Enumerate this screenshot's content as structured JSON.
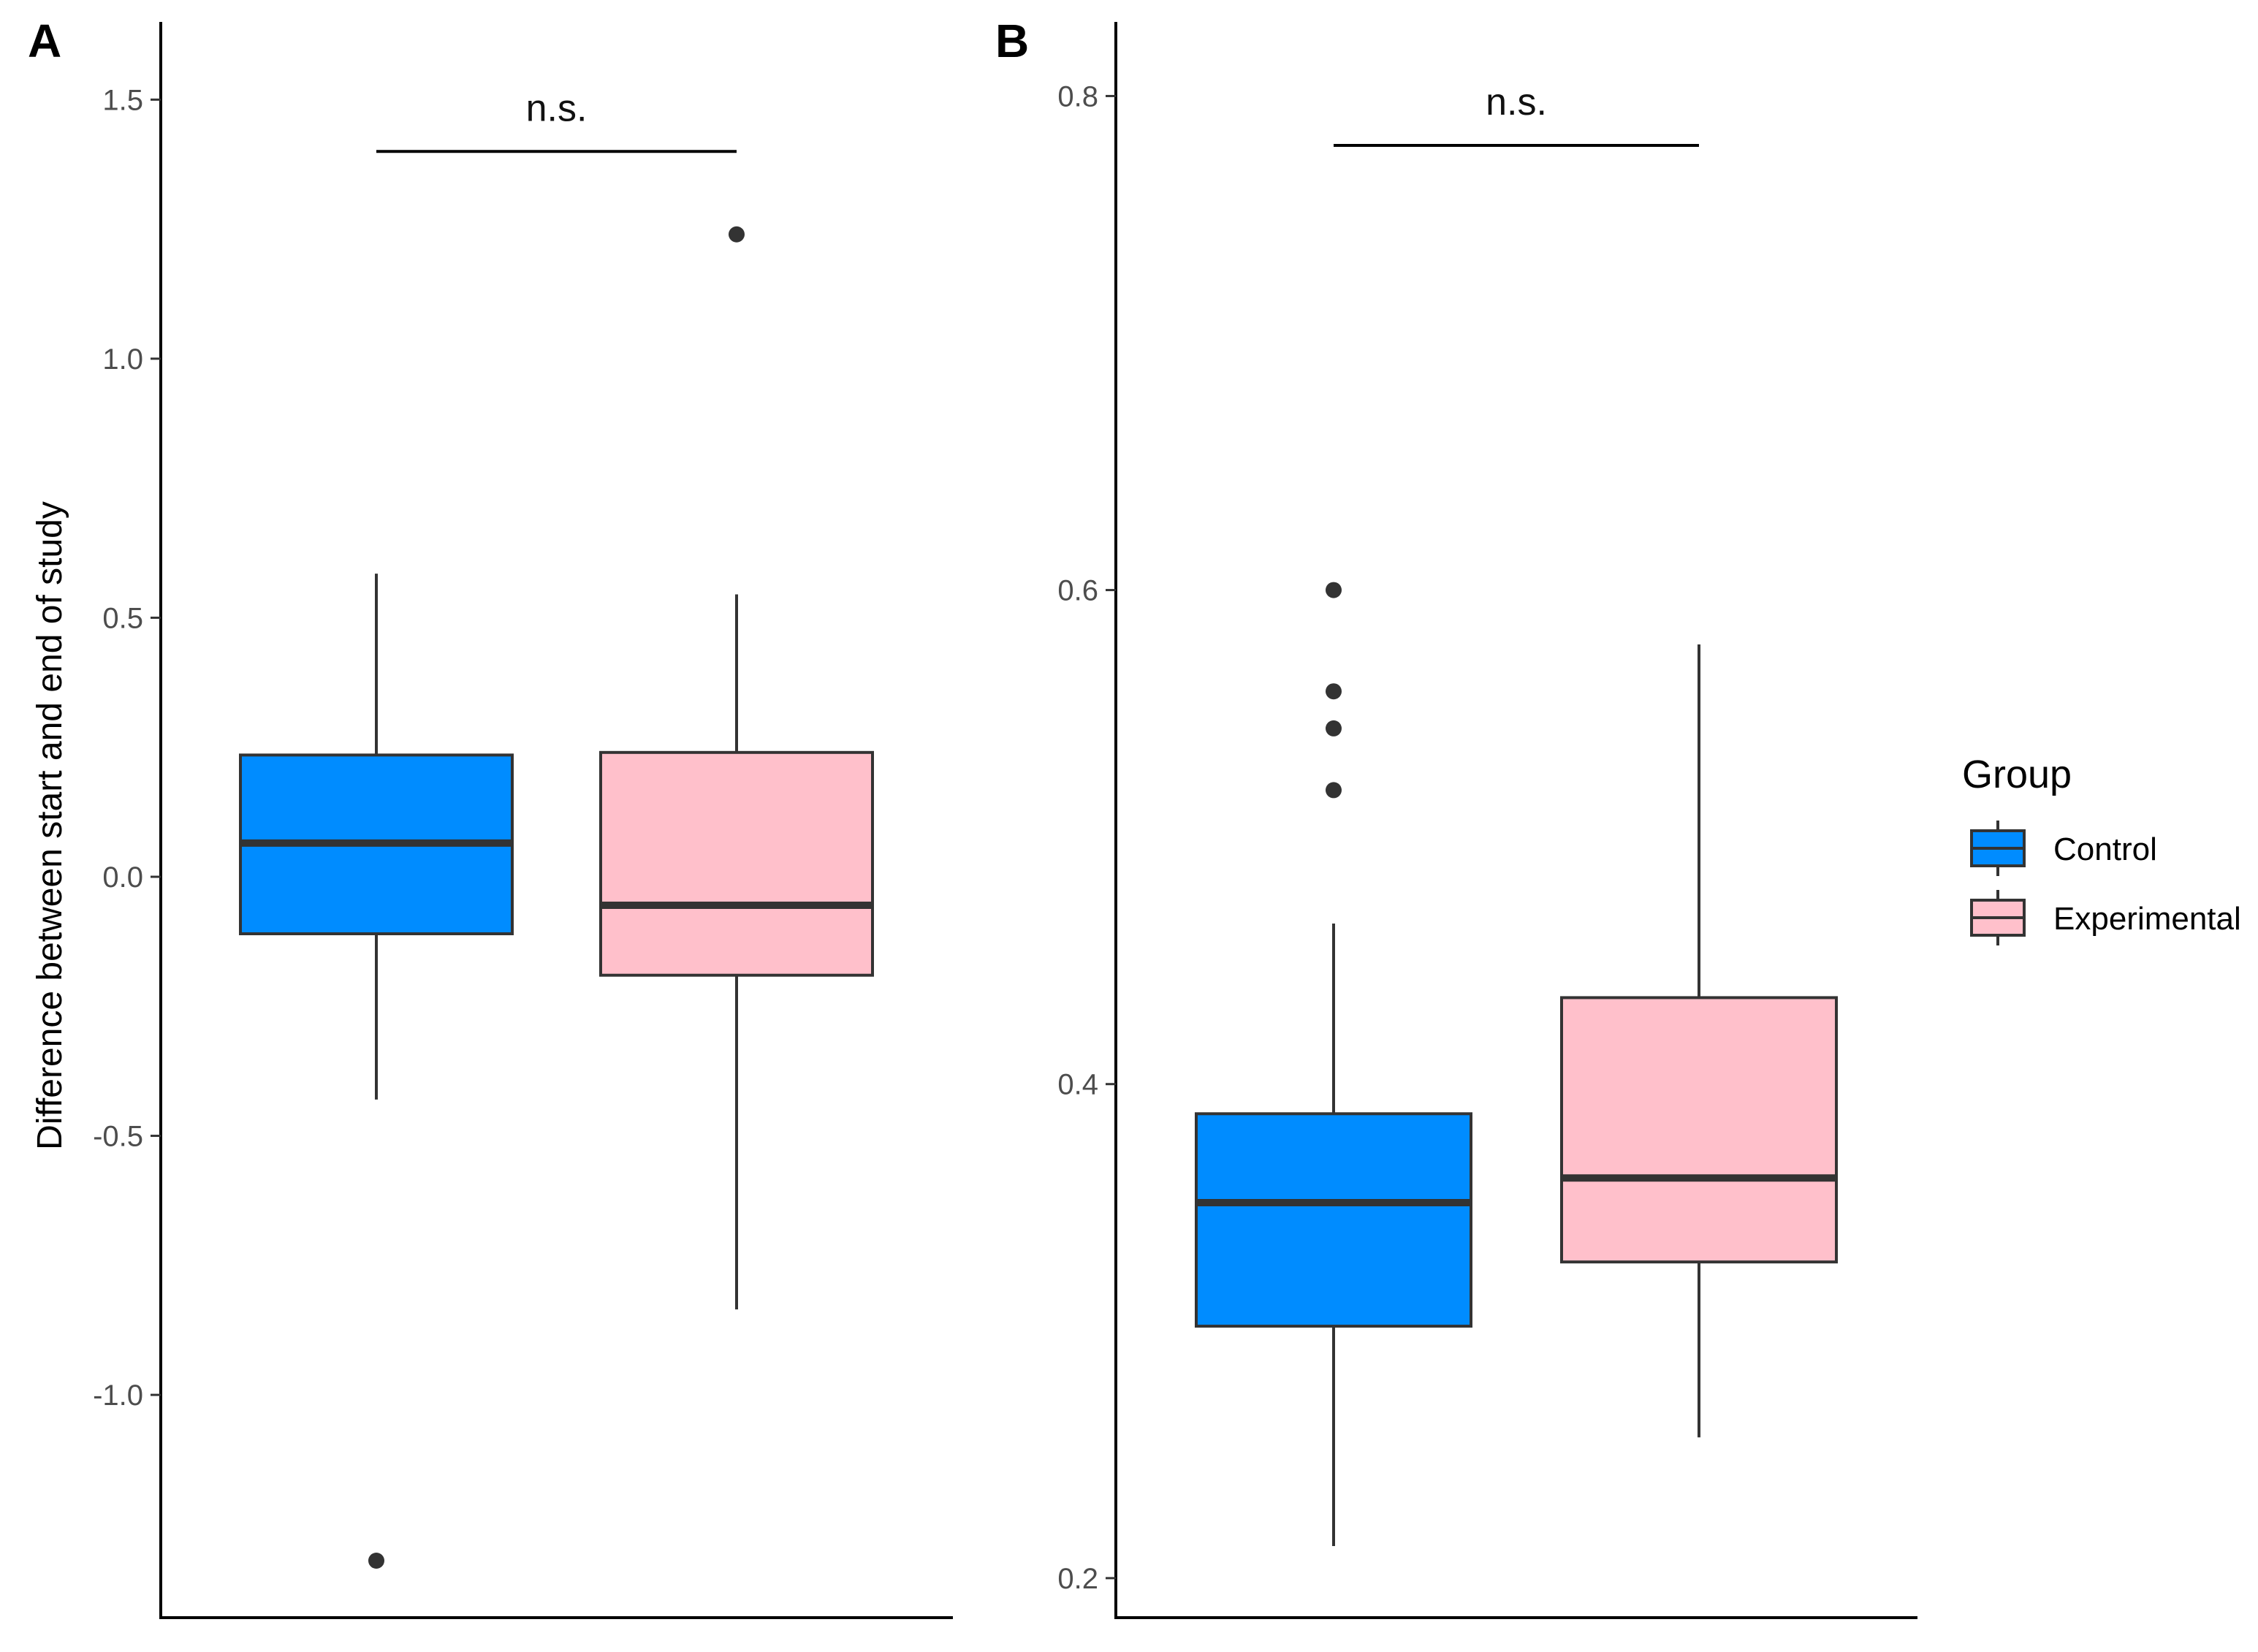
{
  "chart_data": [
    {
      "type": "box",
      "panel_label": "A",
      "ylabel": "Difference between start and end of study",
      "xlabel": "",
      "ylim": [
        -1.43,
        1.65
      ],
      "yticks": [
        1.5,
        1.0,
        0.5,
        0.0,
        -0.5,
        -1.0
      ],
      "ytick_labels": [
        "1.5",
        "1.0",
        "0.5",
        "0.0",
        "-0.5",
        "-1.0"
      ],
      "significance": "n.s.",
      "significance_y": 1.4,
      "series": [
        {
          "name": "Control",
          "min": -0.43,
          "q1": -0.11,
          "median": 0.065,
          "q3": 0.235,
          "max": 0.585,
          "outliers": [
            -1.32
          ]
        },
        {
          "name": "Experimental",
          "min": -0.835,
          "q1": -0.19,
          "median": -0.055,
          "q3": 0.24,
          "max": 0.545,
          "outliers": [
            1.24
          ]
        }
      ]
    },
    {
      "type": "box",
      "panel_label": "B",
      "ylabel": "",
      "xlabel": "",
      "ylim": [
        0.184,
        0.83
      ],
      "yticks": [
        0.8,
        0.6,
        0.4,
        0.2
      ],
      "ytick_labels": [
        "0.8",
        "0.6",
        "0.4",
        "0.2"
      ],
      "significance": "n.s.",
      "significance_y": 0.78,
      "series": [
        {
          "name": "Control",
          "min": 0.213,
          "q1": 0.302,
          "median": 0.352,
          "q3": 0.388,
          "max": 0.465,
          "outliers": [
            0.6,
            0.559,
            0.544,
            0.519
          ]
        },
        {
          "name": "Experimental",
          "min": 0.257,
          "q1": 0.328,
          "median": 0.362,
          "q3": 0.435,
          "max": 0.578,
          "outliers": []
        }
      ]
    }
  ],
  "legend": {
    "title": "Group",
    "items": [
      {
        "label": "Control",
        "color": "#008cff"
      },
      {
        "label": "Experimental",
        "color": "#ffc0cb"
      }
    ]
  },
  "colors": {
    "control": "#008cff",
    "experimental": "#ffc0cb",
    "stroke": "#333333"
  }
}
